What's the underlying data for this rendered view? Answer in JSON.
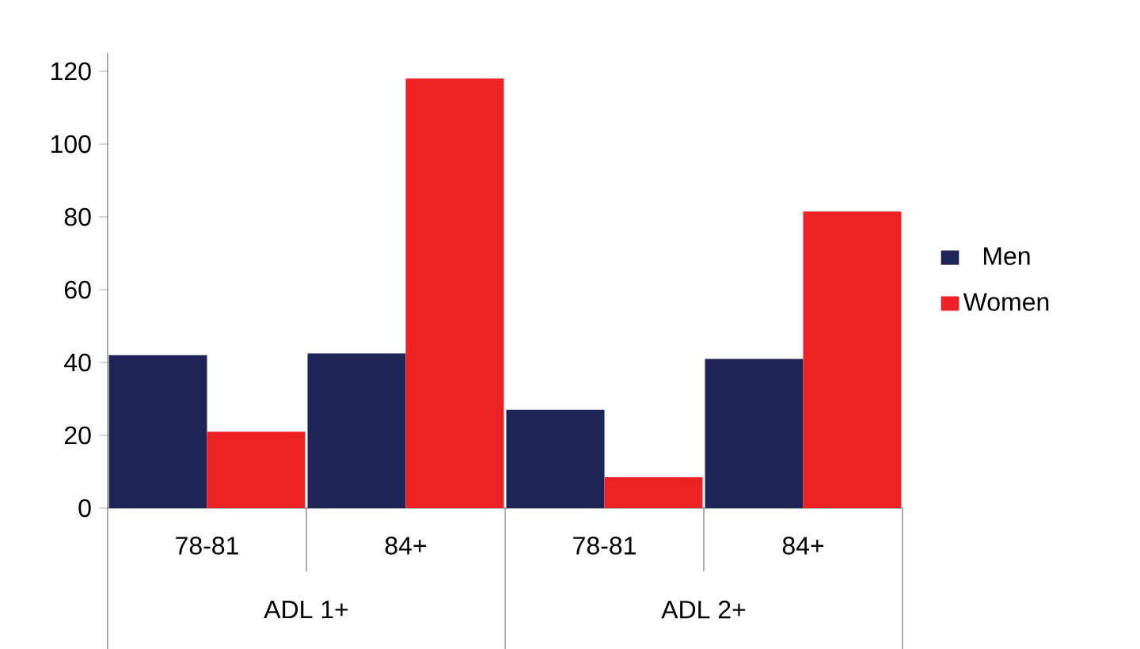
{
  "chart_data": {
    "type": "bar",
    "categories": [
      "78-81",
      "84+",
      "78-81",
      "84+"
    ],
    "series": [
      {
        "name": "Men",
        "color": "#1f2457",
        "values": [
          42,
          42.5,
          27,
          41
        ]
      },
      {
        "name": "Women",
        "color": "#ee2225",
        "values": [
          21,
          118,
          8.5,
          81.5
        ]
      }
    ],
    "annotations": [
      "ADL 1+",
      "ADL 2+"
    ],
    "ylim": [
      0,
      125
    ],
    "yticks": [
      0,
      20,
      40,
      60,
      80,
      100,
      120
    ],
    "grid": false,
    "legend": "right"
  }
}
